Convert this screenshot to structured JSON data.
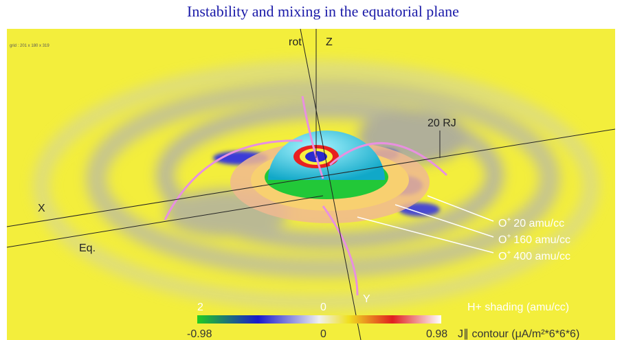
{
  "title": "Instability and mixing in the equatorial plane",
  "grid_info": "grid : 201 x 180 x 319",
  "axes": {
    "rot": "rot",
    "z": "Z",
    "x": "X",
    "y": "Y",
    "eq": "Eq.",
    "scale": "20 RJ"
  },
  "annotations": [
    {
      "ion": "O",
      "charge": "+",
      "density": "20 amu/cc"
    },
    {
      "ion": "O",
      "charge": "+",
      "density": "160 amu/cc"
    },
    {
      "ion": "O",
      "charge": "+",
      "density": "400 amu/cc"
    }
  ],
  "colorbar": {
    "shading_min": "2",
    "shading_mid": "0",
    "shading_label": "H+ shading (amu/cc)",
    "contour_min": "-0.98",
    "contour_mid": "0",
    "contour_max": "0.98",
    "contour_label": "J∥ contour (μA/m²*6*6*6)"
  }
}
